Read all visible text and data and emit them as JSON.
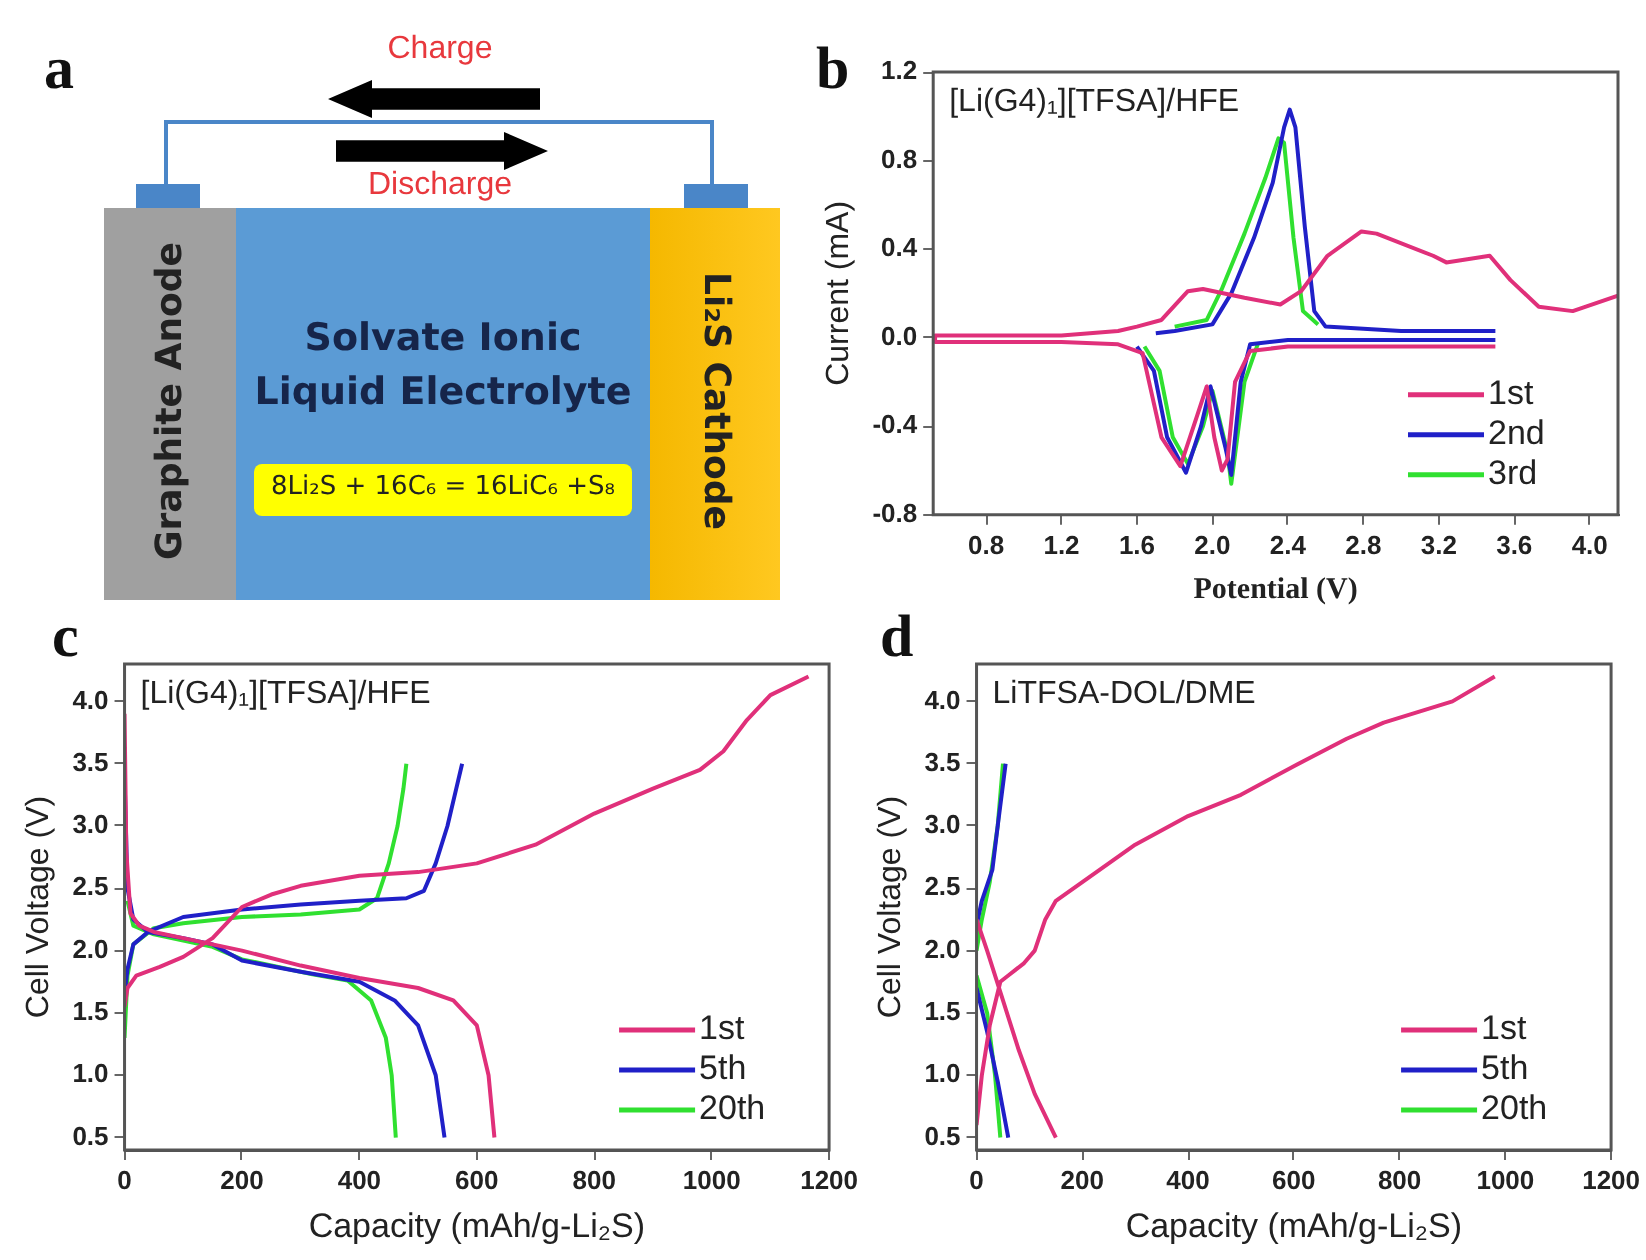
{
  "chart_data": [
    {
      "type": "other",
      "title": "a",
      "annotations": [
        "Charge",
        "Discharge",
        "Graphite Anode",
        "Solvate Ionic Liquid Electrolyte",
        "8Li₂S + 16C₆ = 16LiC₆ +S₈",
        "Li₂S Cathode"
      ]
    },
    {
      "type": "line",
      "title": "b",
      "xlabel": "Potential (V)",
      "ylabel": "Current (mA)",
      "annotations": [
        "[Li(G4)₁][TFSA]/HFE"
      ],
      "legend": "bottom right",
      "grid": false,
      "xlim": [
        0.52,
        4.15
      ],
      "ylim": [
        -0.8,
        1.2
      ],
      "xticks": [
        0.8,
        1.2,
        1.6,
        {
          "value": 2,
          "label": "2.0"
        },
        2.4,
        2.8,
        3.2,
        3.6,
        {
          "value": 4,
          "label": "4.0"
        }
      ],
      "yticks": [
        -0.8,
        -0.4,
        {
          "value": 0,
          "label": "0.0"
        },
        0.4,
        0.8,
        1.2
      ],
      "series": [
        {
          "name": "1st",
          "color": "#e0307a",
          "x": [
            3.5,
            3.0,
            2.4,
            2.2,
            2.12,
            2.08,
            2.05,
            2.01,
            1.97,
            1.92,
            1.83,
            1.73,
            1.63,
            1.5,
            1.2,
            0.53,
            0.53,
            1.2,
            1.5,
            1.6,
            1.73,
            1.87,
            1.95,
            2.17,
            2.36,
            2.47,
            2.61,
            2.79,
            2.87,
            3.17,
            3.24,
            3.47,
            3.58,
            3.73,
            3.91,
            4.15
          ],
          "values": [
            -0.04,
            -0.04,
            -0.04,
            -0.06,
            -0.2,
            -0.55,
            -0.6,
            -0.45,
            -0.22,
            -0.35,
            -0.58,
            -0.45,
            -0.07,
            -0.03,
            -0.02,
            -0.02,
            0.01,
            0.01,
            0.03,
            0.05,
            0.08,
            0.21,
            0.22,
            0.18,
            0.15,
            0.21,
            0.37,
            0.48,
            0.47,
            0.37,
            0.34,
            0.37,
            0.26,
            0.14,
            0.12,
            0.19
          ]
        },
        {
          "name": "2nd",
          "color": "#2020c8",
          "x": [
            3.5,
            3.0,
            2.4,
            2.2,
            2.15,
            2.1,
            2.07,
            1.99,
            1.94,
            1.86,
            1.76,
            1.69,
            1.6,
            null,
            1.7,
            1.8,
            2.0,
            2.1,
            2.22,
            2.32,
            2.38,
            2.41,
            2.44,
            2.49,
            2.54,
            2.6,
            3.0,
            3.5
          ],
          "values": [
            -0.01,
            -0.01,
            -0.01,
            -0.03,
            -0.2,
            -0.62,
            -0.5,
            -0.22,
            -0.4,
            -0.61,
            -0.45,
            -0.15,
            -0.04,
            null,
            0.02,
            0.03,
            0.06,
            0.2,
            0.45,
            0.7,
            0.95,
            1.03,
            0.95,
            0.5,
            0.12,
            0.05,
            0.03,
            0.03
          ]
        },
        {
          "name": "3rd",
          "color": "#30e030",
          "x": [
            2.24,
            2.17,
            2.1,
            2.08,
            2.0,
            1.95,
            1.87,
            1.79,
            1.72,
            1.64,
            null,
            1.8,
            1.97,
            2.05,
            2.17,
            2.28,
            2.35,
            2.38,
            2.43,
            2.48,
            2.56
          ],
          "values": [
            -0.03,
            -0.2,
            -0.66,
            -0.52,
            -0.24,
            -0.4,
            -0.57,
            -0.45,
            -0.15,
            -0.04,
            null,
            0.05,
            0.08,
            0.22,
            0.47,
            0.72,
            0.9,
            0.88,
            0.45,
            0.12,
            0.06
          ]
        }
      ]
    },
    {
      "type": "line",
      "title": "c",
      "xlabel": "Capacity (mAh/g-Li₂S)",
      "ylabel": "Cell Voltage (V)",
      "annotations": [
        "[Li(G4)₁][TFSA]/HFE"
      ],
      "legend": "bottom right",
      "grid": false,
      "xlim": [
        0,
        1200
      ],
      "ylim": [
        0.4,
        4.3
      ],
      "xticks": [
        0,
        200,
        400,
        600,
        800,
        1000,
        1200
      ],
      "yticks": [
        0.5,
        {
          "value": 1,
          "label": "1.0"
        },
        1.5,
        {
          "value": 2,
          "label": "2.0"
        },
        2.5,
        {
          "value": 3,
          "label": "3.0"
        },
        3.5,
        {
          "value": 4,
          "label": "4.0"
        }
      ],
      "series": [
        {
          "name": "1st",
          "color": "#e0307a",
          "x": [
            0,
            3,
            10,
            25,
            50,
            100,
            200,
            300,
            400,
            500,
            560,
            600,
            620,
            630,
            null,
            0,
            5,
            20,
            60,
            100,
            150,
            200,
            250,
            300,
            400,
            500,
            600,
            700,
            800,
            900,
            980,
            1020,
            1060,
            1100,
            1165
          ],
          "values": [
            3.9,
            2.8,
            2.3,
            2.2,
            2.15,
            2.1,
            2.0,
            1.88,
            1.78,
            1.7,
            1.6,
            1.4,
            1.0,
            0.5,
            null,
            1.55,
            1.7,
            1.8,
            1.87,
            1.95,
            2.1,
            2.35,
            2.45,
            2.52,
            2.6,
            2.63,
            2.7,
            2.85,
            3.1,
            3.3,
            3.45,
            3.6,
            3.85,
            4.05,
            4.2
          ]
        },
        {
          "name": "5th",
          "color": "#2020c8",
          "x": [
            0,
            5,
            15,
            40,
            100,
            150,
            200,
            300,
            400,
            460,
            500,
            530,
            545,
            null,
            0,
            5,
            15,
            40,
            100,
            200,
            300,
            400,
            480,
            510,
            530,
            550,
            565,
            575
          ],
          "values": [
            3.4,
            2.5,
            2.25,
            2.15,
            2.1,
            2.05,
            1.92,
            1.83,
            1.75,
            1.6,
            1.4,
            1.0,
            0.5,
            null,
            1.65,
            1.85,
            2.05,
            2.15,
            2.27,
            2.33,
            2.37,
            2.4,
            2.42,
            2.48,
            2.7,
            3.0,
            3.3,
            3.5
          ]
        },
        {
          "name": "20th",
          "color": "#30e030",
          "x": [
            null,
            5,
            15,
            50,
            150,
            200,
            320,
            380,
            420,
            445,
            455,
            462,
            null,
            0,
            5,
            15,
            50,
            100,
            200,
            300,
            400,
            430,
            450,
            465,
            475,
            480
          ],
          "values": [
            null,
            2.4,
            2.2,
            2.13,
            2.03,
            1.93,
            1.81,
            1.76,
            1.6,
            1.3,
            1.0,
            0.5,
            null,
            1.3,
            1.8,
            2.05,
            2.18,
            2.22,
            2.27,
            2.29,
            2.33,
            2.42,
            2.7,
            3.0,
            3.3,
            3.5
          ]
        }
      ]
    },
    {
      "type": "line",
      "title": "d",
      "xlabel": "Capacity (mAh/g-Li₂S)",
      "ylabel": "Cell Voltage (V)",
      "annotations": [
        "LiTFSA-DOL/DME"
      ],
      "legend": "bottom right",
      "grid": false,
      "xlim": [
        0,
        1200
      ],
      "ylim": [
        0.4,
        4.3
      ],
      "xticks": [
        0,
        200,
        400,
        600,
        800,
        1000,
        1200
      ],
      "yticks": [
        0.5,
        {
          "value": 1,
          "label": "1.0"
        },
        1.5,
        {
          "value": 2,
          "label": "2.0"
        },
        2.5,
        {
          "value": 3,
          "label": "3.0"
        },
        3.5,
        {
          "value": 4,
          "label": "4.0"
        }
      ],
      "series": [
        {
          "name": "1st",
          "color": "#e0307a",
          "x": [
            0,
            20,
            50,
            80,
            110,
            150,
            null,
            0,
            10,
            25,
            45,
            60,
            90,
            110,
            130,
            150,
            200,
            300,
            400,
            500,
            600,
            700,
            770,
            900,
            980
          ],
          "values": [
            2.25,
            2.0,
            1.6,
            1.2,
            0.85,
            0.5,
            null,
            0.6,
            1.0,
            1.4,
            1.75,
            1.8,
            1.9,
            2.0,
            2.25,
            2.4,
            2.55,
            2.85,
            3.08,
            3.25,
            3.48,
            3.7,
            3.83,
            4.0,
            4.2
          ]
        },
        {
          "name": "5th",
          "color": "#2020c8",
          "x": [
            0,
            20,
            40,
            60,
            null,
            0,
            10,
            30,
            40,
            55
          ],
          "values": [
            1.7,
            1.35,
            0.95,
            0.5,
            null,
            2.2,
            2.4,
            2.65,
            3.0,
            3.5
          ]
        },
        {
          "name": "20th",
          "color": "#30e030",
          "x": [
            0,
            20,
            35,
            45,
            null,
            0,
            10,
            25,
            40,
            50
          ],
          "values": [
            1.8,
            1.5,
            1.0,
            0.5,
            null,
            2.0,
            2.25,
            2.55,
            3.0,
            3.5
          ]
        }
      ]
    }
  ]
}
